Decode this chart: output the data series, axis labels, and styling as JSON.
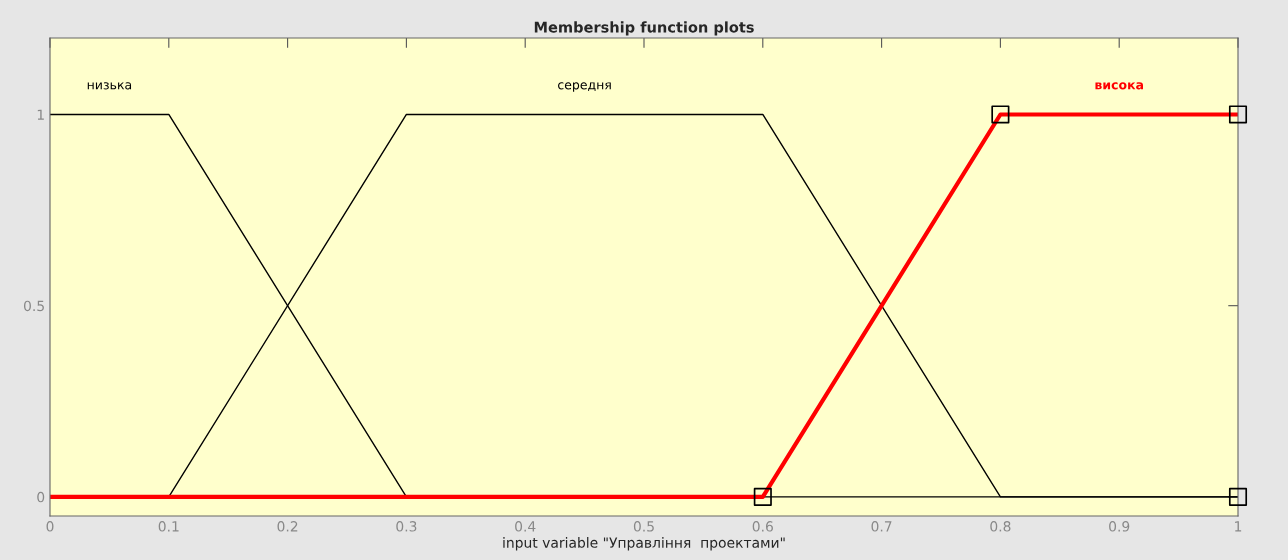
{
  "chart_data": {
    "type": "line",
    "title": "Membership function plots",
    "xlabel": "input variable \"Управління  проектами\"",
    "xlim": [
      0,
      1
    ],
    "ylim": [
      -0.05,
      1.2
    ],
    "xticks": [
      0,
      0.1,
      0.2,
      0.3,
      0.4,
      0.5,
      0.6,
      0.7,
      0.8,
      0.9,
      1
    ],
    "yticks": [
      0,
      0.5,
      1
    ],
    "grid": false,
    "legend": false,
    "marker": "none",
    "line_style": "solid",
    "series": [
      {
        "name": "низька",
        "color": "#000000",
        "x": [
          0,
          0.1,
          0.3,
          1
        ],
        "values": [
          1,
          1,
          0,
          0
        ]
      },
      {
        "name": "середня",
        "color": "#000000",
        "x": [
          0,
          0.1,
          0.3,
          0.6,
          0.8,
          1
        ],
        "values": [
          0,
          0,
          1,
          1,
          0,
          0
        ]
      },
      {
        "name": "висока",
        "color": "#ff0000",
        "x": [
          0,
          0.6,
          0.8,
          1
        ],
        "values": [
          0,
          0,
          1,
          1
        ]
      },
      {
        "type": "scatter",
        "marker": "square",
        "color": "#000000",
        "x": [
          0.6,
          0.8,
          1,
          1
        ],
        "values": [
          0,
          1,
          1,
          0
        ]
      }
    ]
  }
}
